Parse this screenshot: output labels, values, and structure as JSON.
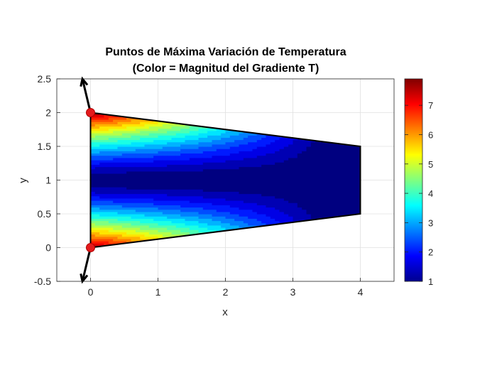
{
  "chart_data": {
    "type": "heatmap",
    "title": "Puntos de Máxima Variación de Temperatura",
    "subtitle": "(Color = Magnitud del Gradiente T)",
    "xlabel": "x",
    "ylabel": "y",
    "xlim": [
      -0.5,
      4.5
    ],
    "ylim": [
      -0.5,
      2.5
    ],
    "x_ticks": [
      "0",
      "1",
      "2",
      "3",
      "4"
    ],
    "y_ticks": [
      "-0.5",
      "0",
      "0.5",
      "1",
      "1.5",
      "2",
      "2.5"
    ],
    "grid": true,
    "colormap": "jet",
    "colorbar": {
      "range": [
        1,
        7.9
      ],
      "ticks": [
        "1",
        "2",
        "3",
        "4",
        "5",
        "6",
        "7"
      ]
    },
    "domain_polygon": [
      [
        0,
        0
      ],
      [
        4,
        0.5
      ],
      [
        4,
        1.5
      ],
      [
        0,
        2
      ]
    ],
    "field": {
      "description_value": "gradient magnitude, max at corners (0,0) and (0,2), min along centerline y=1",
      "max": 7.9,
      "min": 1
    },
    "max_points": [
      {
        "x": 0,
        "y": 2
      },
      {
        "x": 0,
        "y": 0
      }
    ],
    "gradient_arrows": [
      {
        "x": 0,
        "y": 2,
        "dx": -0.12,
        "dy": 0.5
      },
      {
        "x": 0,
        "y": 0,
        "dx": -0.12,
        "dy": -0.5
      }
    ],
    "colors": {
      "max_point": "#e31a1c",
      "boundary": "#000000",
      "grid": "#e0e0e0"
    }
  }
}
